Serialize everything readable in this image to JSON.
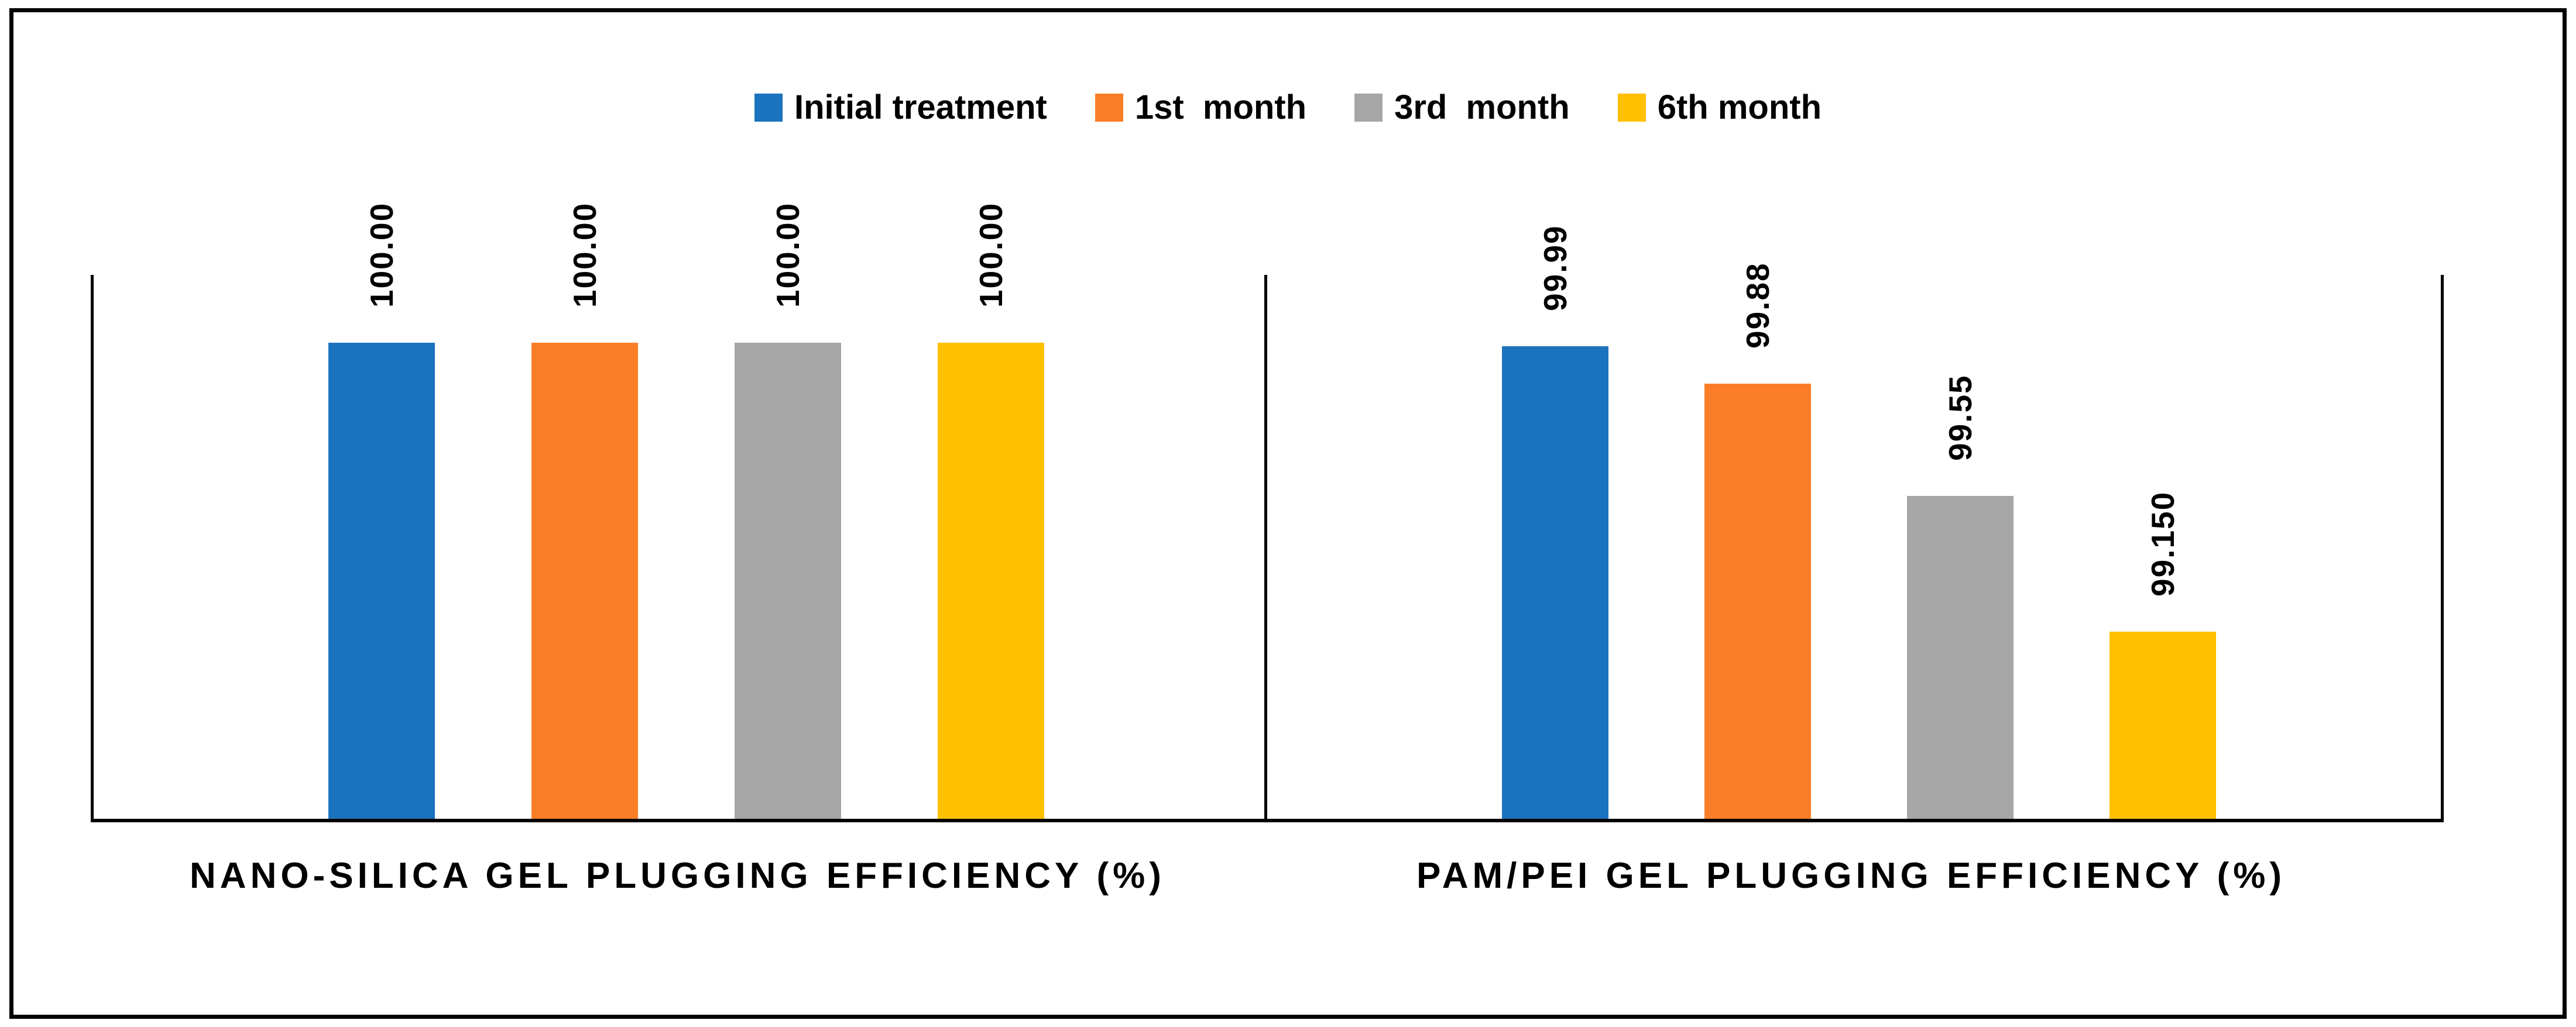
{
  "chart_data": {
    "type": "bar",
    "title": "",
    "legend_position": "top",
    "categories": [
      "NANO-SILICA GEL PLUGGING EFFICIENCY (%)",
      "PAM/PEI GEL PLUGGING EFFICIENCY (%)"
    ],
    "series": [
      {
        "name": "Initial treatment",
        "color": "#1B73BE",
        "values": [
          100.0,
          99.99
        ],
        "display_labels": [
          "100.00",
          "99.99"
        ]
      },
      {
        "name": "1st  month",
        "color": "#FC7D27",
        "values": [
          100.0,
          99.88
        ],
        "display_labels": [
          "100.00",
          "99.88"
        ]
      },
      {
        "name": "3rd  month",
        "color": "#A6A6A6",
        "values": [
          100.0,
          99.55
        ],
        "display_labels": [
          "100.00",
          "99.55"
        ]
      },
      {
        "name": "6th month",
        "color": "#FFC000",
        "values": [
          100.0,
          99.15
        ],
        "display_labels": [
          "100.00",
          "99.150"
        ]
      }
    ],
    "ylim": [
      98.6,
      100.2
    ],
    "grid": false,
    "axis_color": "#000000",
    "data_label_rotation": -90,
    "data_labels_bold": true
  }
}
